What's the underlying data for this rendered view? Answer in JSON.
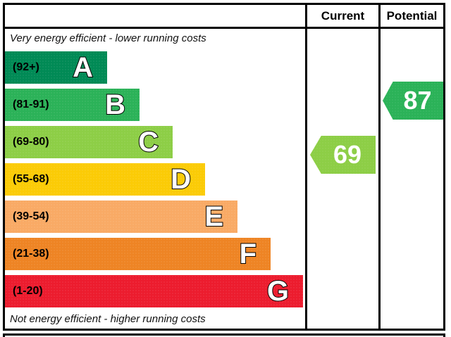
{
  "header": {
    "current_label": "Current",
    "potential_label": "Potential"
  },
  "captions": {
    "top": "Very energy efficient - lower running costs",
    "bottom": "Not energy efficient - higher running costs"
  },
  "bands": [
    {
      "letter": "A",
      "range": "(92+)",
      "color": "#008a55"
    },
    {
      "letter": "B",
      "range": "(81-91)",
      "color": "#2bb258"
    },
    {
      "letter": "C",
      "range": "(69-80)",
      "color": "#8dce46"
    },
    {
      "letter": "D",
      "range": "(55-68)",
      "color": "#fbcb06"
    },
    {
      "letter": "E",
      "range": "(39-54)",
      "color": "#f9aa65"
    },
    {
      "letter": "F",
      "range": "(21-38)",
      "color": "#ee8424"
    },
    {
      "letter": "G",
      "range": "(1-20)",
      "color": "#ec1c2e"
    }
  ],
  "current": {
    "value": "69",
    "color": "#8dce46",
    "band": "C"
  },
  "potential": {
    "value": "87",
    "color": "#2bb258",
    "band": "B"
  },
  "fragment": {
    "color": "#2458a8"
  },
  "chart_data": {
    "type": "bar",
    "title": "Energy efficiency rating chart (EPC)",
    "categories": [
      "A",
      "B",
      "C",
      "D",
      "E",
      "F",
      "G"
    ],
    "band_ranges": [
      "92+",
      "81-91",
      "69-80",
      "55-68",
      "39-54",
      "21-38",
      "1-20"
    ],
    "band_colors": [
      "#008a55",
      "#2bb258",
      "#8dce46",
      "#fbcb06",
      "#f9aa65",
      "#ee8424",
      "#ec1c2e"
    ],
    "series": [
      {
        "name": "Current",
        "value": 69,
        "band": "C"
      },
      {
        "name": "Potential",
        "value": 87,
        "band": "B"
      }
    ],
    "top_annotation": "Very energy efficient - lower running costs",
    "bottom_annotation": "Not energy efficient - higher running costs",
    "columns": [
      "Current",
      "Potential"
    ]
  }
}
